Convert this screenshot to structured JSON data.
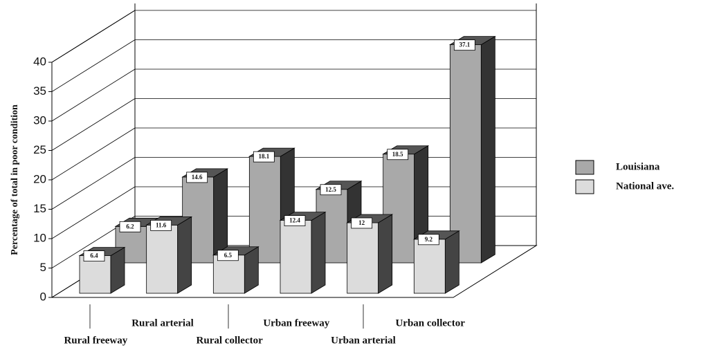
{
  "chart_data": {
    "type": "bar3d",
    "y_label": "Percentage of total in poor condition",
    "categories": [
      "Rural freeway",
      "Rural arterial",
      "Rural collector",
      "Urban freeway",
      "Urban arterial",
      "Urban collector"
    ],
    "series": [
      {
        "name": "Louisiana",
        "color": "#a9a9a9",
        "values": [
          6.2,
          14.6,
          18.1,
          12.5,
          18.5,
          37.1
        ]
      },
      {
        "name": "National ave.",
        "color": "#dcdcdc",
        "values": [
          6.4,
          11.6,
          6.5,
          12.4,
          12,
          9.2
        ]
      }
    ],
    "ylim": [
      0,
      40
    ],
    "yticks": [
      0,
      5,
      10,
      15,
      20,
      25,
      30,
      35,
      40
    ],
    "grid": true
  }
}
